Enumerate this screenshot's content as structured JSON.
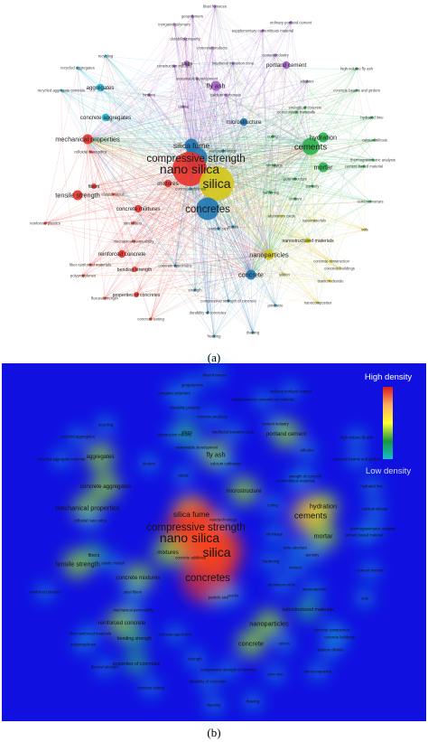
{
  "panels": [
    {
      "id": "a",
      "label": "(a)"
    },
    {
      "id": "b",
      "label": "(b)"
    }
  ],
  "density_legend": {
    "high": "High density",
    "low": "Low density",
    "colors": [
      "#d7191c",
      "#fdae61",
      "#ffff33",
      "#1a9641",
      "#17becf"
    ]
  },
  "colors": {
    "red": "#e8312a",
    "yellow": "#d4c61a",
    "green": "#2ab34a",
    "cyan": "#19b5d3",
    "blue": "#1f78b4",
    "purple": "#a45fc9",
    "density_bg": "#1010e0"
  },
  "terms": [
    {
      "t": "blast furnaces",
      "c": "purple",
      "w": 1
    },
    {
      "t": "geopolymers",
      "c": "purple",
      "w": 1
    },
    {
      "t": "inorganic polymers",
      "c": "purple",
      "w": 1
    },
    {
      "t": "ordinary portland cement",
      "c": "purple",
      "w": 1
    },
    {
      "t": "supplementary cementitious material",
      "c": "purple",
      "w": 1
    },
    {
      "t": "durability property",
      "c": "purple",
      "w": 1
    },
    {
      "t": "concrete products",
      "c": "purple",
      "w": 1
    },
    {
      "t": "cement industry",
      "c": "purple",
      "w": 1
    },
    {
      "t": "recycling",
      "c": "cyan",
      "w": 1
    },
    {
      "t": "construction industry",
      "c": "purple",
      "w": 1
    },
    {
      "t": "slags",
      "c": "purple",
      "w": 2
    },
    {
      "t": "interfacial transition zone",
      "c": "purple",
      "w": 1
    },
    {
      "t": "portland cement",
      "c": "purple",
      "w": 3
    },
    {
      "t": "high volume fly ash",
      "c": "green",
      "w": 1
    },
    {
      "t": "recycled aggregates",
      "c": "cyan",
      "w": 1
    },
    {
      "t": "sustainable development",
      "c": "purple",
      "w": 1
    },
    {
      "t": "fly ash",
      "c": "purple",
      "w": 4
    },
    {
      "t": "silicates",
      "c": "purple",
      "w": 1
    },
    {
      "t": "aggregates",
      "c": "cyan",
      "w": 3
    },
    {
      "t": "recycled aggregate concrete",
      "c": "cyan",
      "w": 1
    },
    {
      "t": "binders",
      "c": "purple",
      "w": 1
    },
    {
      "t": "calcium carbonate",
      "c": "purple",
      "w": 1
    },
    {
      "t": "concrete beams and girders",
      "c": "green",
      "w": 1
    },
    {
      "t": "calcite",
      "c": "purple",
      "w": 1
    },
    {
      "t": "cementitious materials",
      "c": "green",
      "w": 1
    },
    {
      "t": "strength of concrete",
      "c": "green",
      "w": 1
    },
    {
      "t": "hydrated lime",
      "c": "green",
      "w": 1
    },
    {
      "t": "concrete aggregates",
      "c": "cyan",
      "w": 3
    },
    {
      "t": "microstructure",
      "c": "blue",
      "w": 3
    },
    {
      "t": "hydration",
      "c": "green",
      "w": 4
    },
    {
      "t": "mechanical properties",
      "c": "red",
      "w": 4
    },
    {
      "t": "silica fume",
      "c": "blue",
      "w": 5
    },
    {
      "t": "curing",
      "c": "green",
      "w": 1
    },
    {
      "t": "cements",
      "c": "green",
      "w": 6
    },
    {
      "t": "calcium silicate",
      "c": "green",
      "w": 1
    },
    {
      "t": "colloidal nano silica",
      "c": "red",
      "w": 1
    },
    {
      "t": "nanotechnology",
      "c": "blue",
      "w": 1
    },
    {
      "t": "thermogravimetric analysis",
      "c": "green",
      "w": 1
    },
    {
      "t": "compressive strength",
      "c": "blue",
      "w": 7
    },
    {
      "t": "nano silica",
      "c": "red",
      "w": 9
    },
    {
      "t": "cement based material",
      "c": "green",
      "w": 1
    },
    {
      "t": "mortar",
      "c": "green",
      "w": 4
    },
    {
      "t": "shrinkage",
      "c": "green",
      "w": 1
    },
    {
      "t": "pore structure",
      "c": "green",
      "w": 1
    },
    {
      "t": "silica",
      "c": "yellow",
      "w": 9
    },
    {
      "t": "fibers",
      "c": "red",
      "w": 2
    },
    {
      "t": "mixtures",
      "c": "red",
      "w": 3
    },
    {
      "t": "porosity",
      "c": "green",
      "w": 1
    },
    {
      "t": "tensile strength",
      "c": "red",
      "w": 4
    },
    {
      "t": "elastic moduli",
      "c": "red",
      "w": 1
    },
    {
      "t": "concrete additives",
      "c": "blue",
      "w": 1
    },
    {
      "t": "hardening",
      "c": "green",
      "w": 1
    },
    {
      "t": "cement",
      "c": "green",
      "w": 1
    },
    {
      "t": "cement mortars",
      "c": "green",
      "w": 1
    },
    {
      "t": "concretes",
      "c": "blue",
      "w": 7
    },
    {
      "t": "concrete mixtures",
      "c": "red",
      "w": 3
    },
    {
      "t": "aluminium oxide",
      "c": "yellow",
      "w": 1
    },
    {
      "t": "steel fibers",
      "c": "red",
      "w": 1
    },
    {
      "t": "reinforced plastics",
      "c": "red",
      "w": 1
    },
    {
      "t": "nanomaterials",
      "c": "yellow",
      "w": 1
    },
    {
      "t": "cracks",
      "c": "blue",
      "w": 1
    },
    {
      "t": "sols",
      "c": "yellow",
      "w": 1
    },
    {
      "t": "particle size",
      "c": "blue",
      "w": 1
    },
    {
      "t": "mechanical permeability",
      "c": "red",
      "w": 1
    },
    {
      "t": "reinforced concrete",
      "c": "red",
      "w": 3
    },
    {
      "t": "nanostructured materials",
      "c": "yellow",
      "w": 2
    },
    {
      "t": "fiber reinforced materials",
      "c": "red",
      "w": 1
    },
    {
      "t": "nanoparticles",
      "c": "yellow",
      "w": 4
    },
    {
      "t": "bending strength",
      "c": "red",
      "w": 2
    },
    {
      "t": "concrete construction",
      "c": "yellow",
      "w": 1
    },
    {
      "t": "polypropylenes",
      "c": "red",
      "w": 1
    },
    {
      "t": "concrete specimens",
      "c": "blue",
      "w": 1
    },
    {
      "t": "concrete buildings",
      "c": "yellow",
      "w": 1
    },
    {
      "t": "concrete",
      "c": "blue",
      "w": 4
    },
    {
      "t": "silicon",
      "c": "yellow",
      "w": 1
    },
    {
      "t": "titanium dioxide",
      "c": "yellow",
      "w": 1
    },
    {
      "t": "properties of concretes",
      "c": "red",
      "w": 2
    },
    {
      "t": "strength",
      "c": "blue",
      "w": 1
    },
    {
      "t": "flexural strength",
      "c": "red",
      "w": 1
    },
    {
      "t": "nanocomposites",
      "c": "yellow",
      "w": 1
    },
    {
      "t": "compressive strength of concrete",
      "c": "blue",
      "w": 1
    },
    {
      "t": "pore size",
      "c": "blue",
      "w": 1
    },
    {
      "t": "durability of concretes",
      "c": "blue",
      "w": 1
    },
    {
      "t": "concrete testing",
      "c": "red",
      "w": 1
    },
    {
      "t": "freezing",
      "c": "blue",
      "w": 1
    },
    {
      "t": "thawing",
      "c": "blue",
      "w": 1
    }
  ]
}
